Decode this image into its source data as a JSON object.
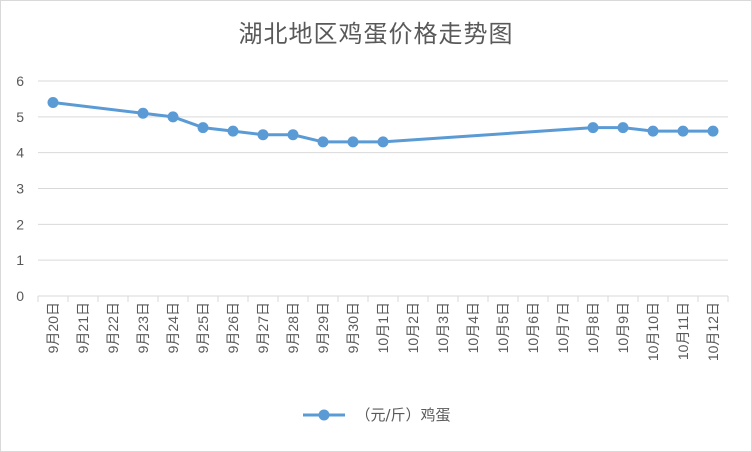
{
  "chart_data": {
    "type": "line",
    "title": "湖北地区鸡蛋价格走势图",
    "xlabel": "",
    "ylabel": "",
    "categories": [
      "9月20日",
      "9月21日",
      "9月22日",
      "9月23日",
      "9月24日",
      "9月25日",
      "9月26日",
      "9月27日",
      "9月28日",
      "9月29日",
      "9月30日",
      "10月1日",
      "10月2日",
      "10月3日",
      "10月4日",
      "10月5日",
      "10月6日",
      "10月7日",
      "10月8日",
      "10月9日",
      "10月10日",
      "10月11日",
      "10月12日"
    ],
    "series": [
      {
        "name": "（元/斤）鸡蛋",
        "color": "#5b9bd5",
        "values": [
          5.4,
          null,
          null,
          5.1,
          5.0,
          4.7,
          4.6,
          4.5,
          4.5,
          4.3,
          4.3,
          4.3,
          null,
          null,
          null,
          null,
          null,
          null,
          4.7,
          4.7,
          4.6,
          4.6,
          4.6
        ]
      }
    ],
    "ylim": [
      0,
      6
    ],
    "yticks": [
      0,
      1,
      2,
      3,
      4,
      5,
      6
    ],
    "grid": true,
    "legend_position": "bottom",
    "gaps": "connect"
  }
}
